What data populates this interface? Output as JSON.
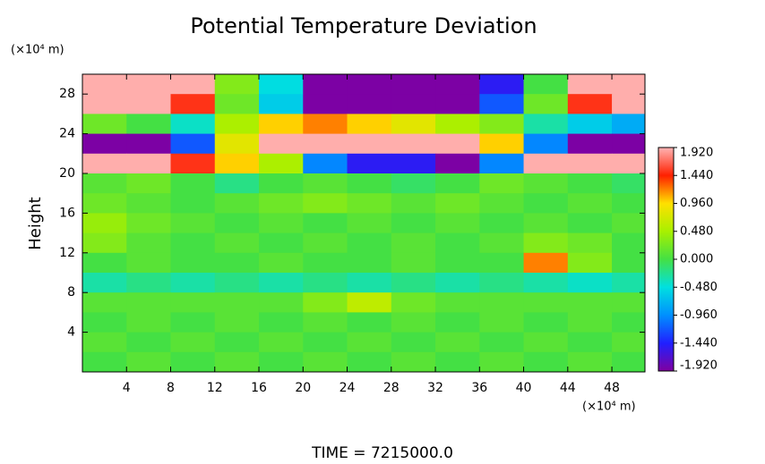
{
  "chart_data": {
    "type": "heatmap",
    "title": "Potential Temperature Deviation",
    "ylabel": "Height",
    "x_unit": "(×10⁴ m)",
    "y_unit": "(×10⁴ m)",
    "footer": "TIME = 7215000.0",
    "xlim": [
      0,
      51
    ],
    "ylim": [
      0,
      30
    ],
    "xticks": [
      4,
      8,
      12,
      16,
      20,
      24,
      28,
      32,
      36,
      40,
      44,
      48
    ],
    "yticks": [
      4,
      8,
      12,
      16,
      20,
      24,
      28
    ],
    "x_edges": [
      0,
      4,
      8,
      12,
      16,
      20,
      24,
      28,
      32,
      36,
      40,
      44,
      48,
      52
    ],
    "y_edges": [
      30,
      28,
      26,
      24,
      22,
      20,
      18,
      16,
      14,
      12,
      10,
      8,
      6,
      4,
      2,
      0
    ],
    "z": [
      [
        1.9,
        1.9,
        1.9,
        0.3,
        -0.5,
        -1.9,
        -1.9,
        -1.9,
        -1.9,
        -1.5,
        0,
        1.9,
        1.9
      ],
      [
        1.9,
        1.9,
        1.5,
        0.2,
        -0.6,
        -1.9,
        -1.9,
        -1.9,
        -1.9,
        -1.2,
        0.2,
        1.5,
        1.9
      ],
      [
        0.2,
        0,
        -0.4,
        0.5,
        1.0,
        1.2,
        1.0,
        0.8,
        0.5,
        0.3,
        -0.3,
        -0.6,
        -0.8
      ],
      [
        -1.9,
        -1.9,
        -1.2,
        0.8,
        1.9,
        1.9,
        1.9,
        1.9,
        1.9,
        1.0,
        -1.0,
        -1.9,
        -1.9
      ],
      [
        1.9,
        1.9,
        1.5,
        1.0,
        0.5,
        -1.0,
        -1.5,
        -1.5,
        -1.9,
        -1.0,
        1.9,
        1.9,
        1.9
      ],
      [
        0.1,
        0.2,
        0,
        -0.2,
        0,
        0.1,
        0,
        -0.1,
        0,
        0.2,
        0.1,
        0,
        -0.1
      ],
      [
        0.2,
        0.1,
        0,
        0.1,
        0.2,
        0.3,
        0.2,
        0.1,
        0.2,
        0.1,
        0,
        0.1,
        0
      ],
      [
        0.4,
        0.2,
        0.1,
        0,
        0.1,
        0,
        0.1,
        0,
        0.1,
        0,
        0.1,
        0,
        0.1
      ],
      [
        0.3,
        0.1,
        0,
        0.1,
        0,
        0.1,
        0,
        0.1,
        0,
        0.1,
        0.3,
        0.2,
        0
      ],
      [
        0,
        0.1,
        0,
        0,
        0.1,
        0,
        0,
        0.1,
        0,
        0,
        1.2,
        0.3,
        0
      ],
      [
        -0.3,
        -0.2,
        -0.3,
        -0.2,
        -0.3,
        -0.2,
        -0.3,
        -0.2,
        -0.3,
        -0.2,
        -0.3,
        -0.4,
        -0.3
      ],
      [
        0.1,
        0.1,
        0.1,
        0.1,
        0.1,
        0.3,
        0.6,
        0.2,
        0.1,
        0.1,
        0.1,
        0.1,
        0.1
      ],
      [
        0,
        0.1,
        0,
        0.1,
        0,
        0.1,
        0,
        0.1,
        0,
        0.1,
        0,
        0.1,
        0
      ],
      [
        0.1,
        0,
        0.1,
        0,
        0.1,
        0,
        0.1,
        0,
        0.1,
        0,
        0.1,
        0,
        0.1
      ],
      [
        0,
        0.1,
        0,
        0.1,
        0,
        0.1,
        0,
        0.1,
        0,
        0.1,
        0,
        0.1,
        0
      ]
    ],
    "zlim": [
      -1.92,
      1.92
    ],
    "colormap": [
      "#8000a0",
      "#2020ff",
      "#0090ff",
      "#00e0e0",
      "#44e044",
      "#a8f000",
      "#ffe000",
      "#ff2000",
      "#ffb4b4"
    ],
    "colorbar_ticks": [
      {
        "value": 1.92,
        "label": "1.920"
      },
      {
        "value": 1.44,
        "label": "1.440"
      },
      {
        "value": 0.96,
        "label": "0.960"
      },
      {
        "value": 0.48,
        "label": "0.480"
      },
      {
        "value": 0,
        "label": "0.000"
      },
      {
        "value": -0.48,
        "label": "-0.480"
      },
      {
        "value": -0.96,
        "label": "-0.960"
      },
      {
        "value": -1.44,
        "label": "-1.440"
      },
      {
        "value": -1.92,
        "label": "-1.920"
      }
    ]
  }
}
